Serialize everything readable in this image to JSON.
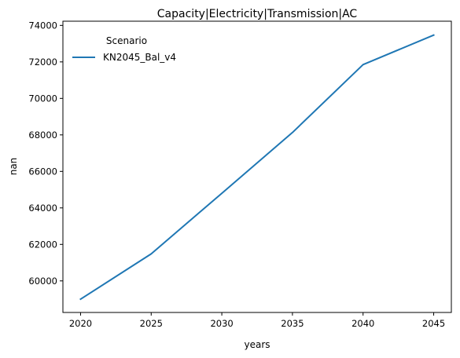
{
  "chart_data": {
    "type": "line",
    "title": "Capacity|Electricity|Transmission|AC",
    "xlabel": "years",
    "ylabel": "nan",
    "x": [
      2020,
      2025,
      2030,
      2035,
      2040,
      2045
    ],
    "x_ticks": [
      "2020",
      "2025",
      "2030",
      "2035",
      "2040",
      "2045"
    ],
    "y_ticks": [
      "60000",
      "62000",
      "64000",
      "66000",
      "68000",
      "70000",
      "72000",
      "74000"
    ],
    "y_tick_values": [
      60000,
      62000,
      64000,
      66000,
      68000,
      70000,
      72000,
      74000
    ],
    "xlim": [
      2018.75,
      2046.25
    ],
    "ylim": [
      58270,
      74230
    ],
    "grid": false,
    "legend": {
      "title": "Scenario",
      "location": "top-left"
    },
    "series": [
      {
        "name": "KN2045_Bal_v4",
        "color": "#1f77b4",
        "values": [
          59000,
          61480,
          64800,
          68130,
          71850,
          73470
        ]
      }
    ]
  }
}
